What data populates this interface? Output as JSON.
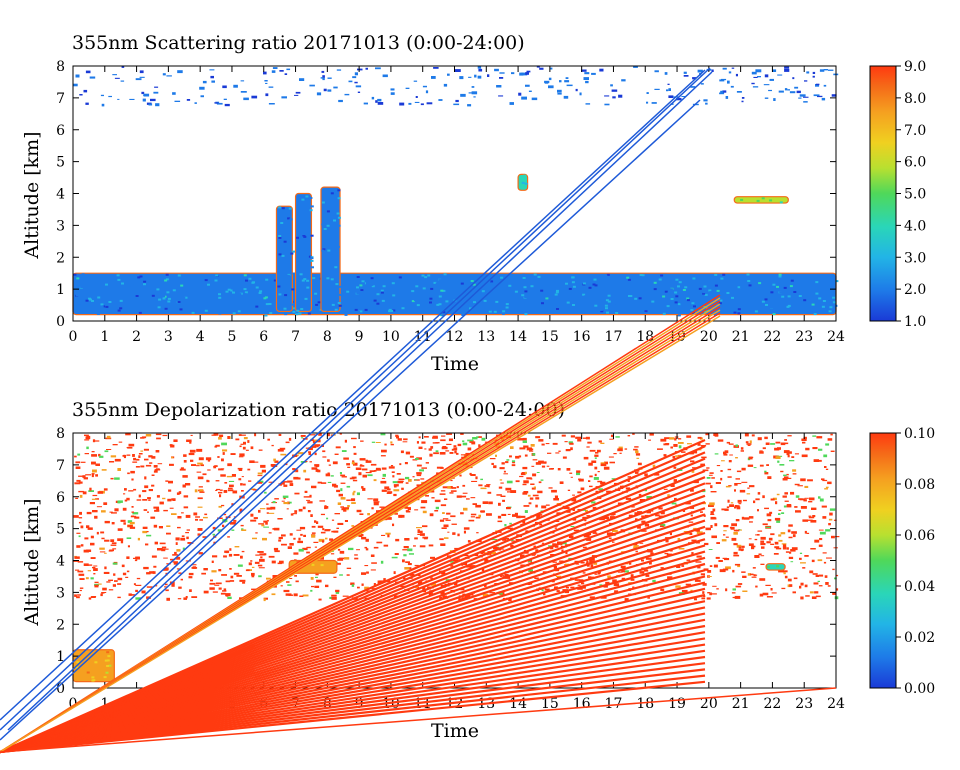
{
  "chart_data": [
    {
      "type": "heatmap",
      "title": "355nm Scattering ratio  20171013 (0:00-24:00)",
      "xlabel": "Time",
      "ylabel": "Altitude [km]",
      "xlim": [
        0,
        24
      ],
      "ylim": [
        0,
        8
      ],
      "x_ticks": [
        "0",
        "1",
        "2",
        "3",
        "4",
        "5",
        "6",
        "7",
        "8",
        "9",
        "10",
        "11",
        "12",
        "13",
        "14",
        "15",
        "16",
        "17",
        "18",
        "19",
        "20",
        "21",
        "22",
        "23",
        "24"
      ],
      "y_ticks": [
        "0",
        "1",
        "2",
        "3",
        "4",
        "5",
        "6",
        "7",
        "8"
      ],
      "colorbar": {
        "range": [
          1.0,
          9.0
        ],
        "ticks": [
          "1.0",
          "2.0",
          "3.0",
          "4.0",
          "5.0",
          "6.0",
          "7.0",
          "8.0",
          "9.0"
        ],
        "colors": [
          "#1a3ad6",
          "#1e7ae8",
          "#22b4e6",
          "#2ad6b8",
          "#4fd85a",
          "#b8e030",
          "#f0d020",
          "#f5a020",
          "#f56a18",
          "#ff3a10"
        ]
      },
      "features": [
        {
          "name": "boundary layer",
          "x_range": [
            0,
            24
          ],
          "alt_range": [
            0.2,
            1.5
          ],
          "value": 2.5
        },
        {
          "name": "cloud column 6.5h",
          "x_range": [
            6.4,
            6.9
          ],
          "alt_range": [
            0.3,
            3.6
          ],
          "value": 2.2
        },
        {
          "name": "cloud column 7.2h",
          "x_range": [
            7.0,
            7.5
          ],
          "alt_range": [
            0.3,
            4.0
          ],
          "value": 2.5
        },
        {
          "name": "cloud column 8.1h",
          "x_range": [
            7.8,
            8.4
          ],
          "alt_range": [
            0.3,
            4.2
          ],
          "value": 2.4
        },
        {
          "name": "cloud 14.2h",
          "x_range": [
            14.0,
            14.3
          ],
          "alt_range": [
            4.1,
            4.6
          ],
          "value": 3.5
        },
        {
          "name": "cloud 21-22h",
          "x_range": [
            20.8,
            22.5
          ],
          "alt_range": [
            3.7,
            3.9
          ],
          "value": 5.0
        },
        {
          "name": "noise band",
          "x_range": [
            0,
            24
          ],
          "alt_range": [
            6.8,
            8.0
          ],
          "value": 1.3
        }
      ]
    },
    {
      "type": "heatmap",
      "title": "355nm Depolarization ratio  20171013 (0:00-24:00)",
      "xlabel": "Time",
      "ylabel": "Altitude [km]",
      "xlim": [
        0,
        24
      ],
      "ylim": [
        0,
        8
      ],
      "x_ticks": [
        "0",
        "1",
        "2",
        "3",
        "4",
        "5",
        "6",
        "7",
        "8",
        "9",
        "10",
        "11",
        "12",
        "13",
        "14",
        "15",
        "16",
        "17",
        "18",
        "19",
        "20",
        "21",
        "22",
        "23",
        "24"
      ],
      "y_ticks": [
        "0",
        "1",
        "2",
        "3",
        "4",
        "5",
        "6",
        "7",
        "8"
      ],
      "colorbar": {
        "range": [
          0.0,
          0.1
        ],
        "ticks": [
          "0.00",
          "0.02",
          "0.04",
          "0.06",
          "0.08",
          "0.10"
        ],
        "colors": [
          "#1a3ad6",
          "#1e7ae8",
          "#22b4e6",
          "#2ad6b8",
          "#4fd85a",
          "#b8e030",
          "#f0d020",
          "#f5a020",
          "#f56a18",
          "#ff3a10"
        ]
      },
      "features": [
        {
          "name": "saturated noise",
          "x_range": [
            0,
            24
          ],
          "alt_range": [
            2.8,
            8.0
          ],
          "value": 0.1
        },
        {
          "name": "aerosol layer 0-1.5h",
          "x_range": [
            0,
            1.3
          ],
          "alt_range": [
            0.2,
            1.2
          ],
          "value": 0.07
        },
        {
          "name": "cloud top 7-8h",
          "x_range": [
            6.8,
            8.3
          ],
          "alt_range": [
            3.6,
            4.0
          ],
          "value": 0.07
        },
        {
          "name": "cloud 22h",
          "x_range": [
            21.8,
            22.4
          ],
          "alt_range": [
            3.7,
            3.9
          ],
          "value": 0.04
        }
      ]
    }
  ]
}
